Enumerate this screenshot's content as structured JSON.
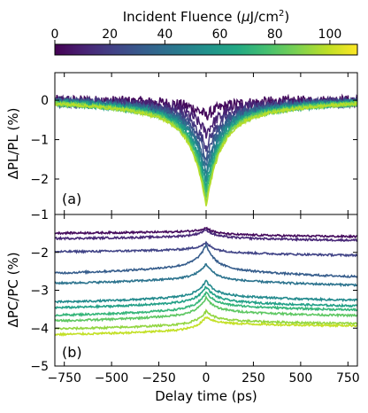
{
  "chart_data": {
    "type": "line",
    "colorbar": {
      "label": "Incident Fluence (μJ/cm²)",
      "label_parts": [
        "Incident Fluence (",
        "μ",
        "J/cm",
        "2",
        ")"
      ],
      "range": [
        0,
        110
      ],
      "ticks": [
        0,
        20,
        40,
        60,
        80,
        100
      ],
      "colormap": "viridis"
    },
    "x": {
      "label": "Delay time (ps)",
      "range": [
        -800,
        800
      ],
      "ticks": [
        -750,
        -500,
        -250,
        0,
        250,
        500,
        750
      ],
      "tick_labels": [
        "−750",
        "−500",
        "−250",
        "0",
        "250",
        "500",
        "750"
      ]
    },
    "panels": [
      {
        "tag": "(a)",
        "ylabel": "ΔPL/PL (%)",
        "ylim": [
          -2.9,
          0.7
        ],
        "yticks": [
          0,
          -1,
          -2
        ],
        "ytick_labels": [
          "0",
          "−1",
          "−2"
        ],
        "series_fluence": [
          3,
          10,
          18,
          26,
          34,
          42,
          50,
          58,
          66,
          74,
          82,
          90,
          98
        ],
        "peak_value_at_zero": [
          -0.4,
          -0.85,
          -1.2,
          -1.45,
          -1.65,
          -1.85,
          -2.0,
          -2.15,
          -2.3,
          -2.4,
          -2.5,
          -2.6,
          -2.7
        ],
        "noise_pp": 0.3
      },
      {
        "tag": "(b)",
        "ylabel": "ΔPC/PC (%)",
        "ylim": [
          -5,
          -1
        ],
        "yticks": [
          -1,
          -2,
          -3,
          -4,
          -5
        ],
        "ytick_labels": [
          "−1",
          "−2",
          "−3",
          "−4",
          "−5"
        ],
        "series_fluence": [
          3,
          12,
          22,
          32,
          42,
          52,
          62,
          72,
          82,
          92,
          100
        ],
        "value_at_minus_800": [
          -1.5,
          -1.65,
          -2.0,
          -2.6,
          -2.85,
          -3.35,
          -3.5,
          -3.7,
          -3.85,
          -4.05,
          -4.2
        ],
        "value_at_zero": [
          -1.35,
          -1.4,
          -1.75,
          -1.8,
          -2.3,
          -2.75,
          -2.9,
          -3.05,
          -3.2,
          -3.55,
          -3.7
        ],
        "value_at_800": [
          -1.6,
          -1.7,
          -2.1,
          -2.7,
          -2.9,
          -3.3,
          -3.45,
          -3.55,
          -3.7,
          -3.9,
          -3.95
        ]
      }
    ]
  }
}
